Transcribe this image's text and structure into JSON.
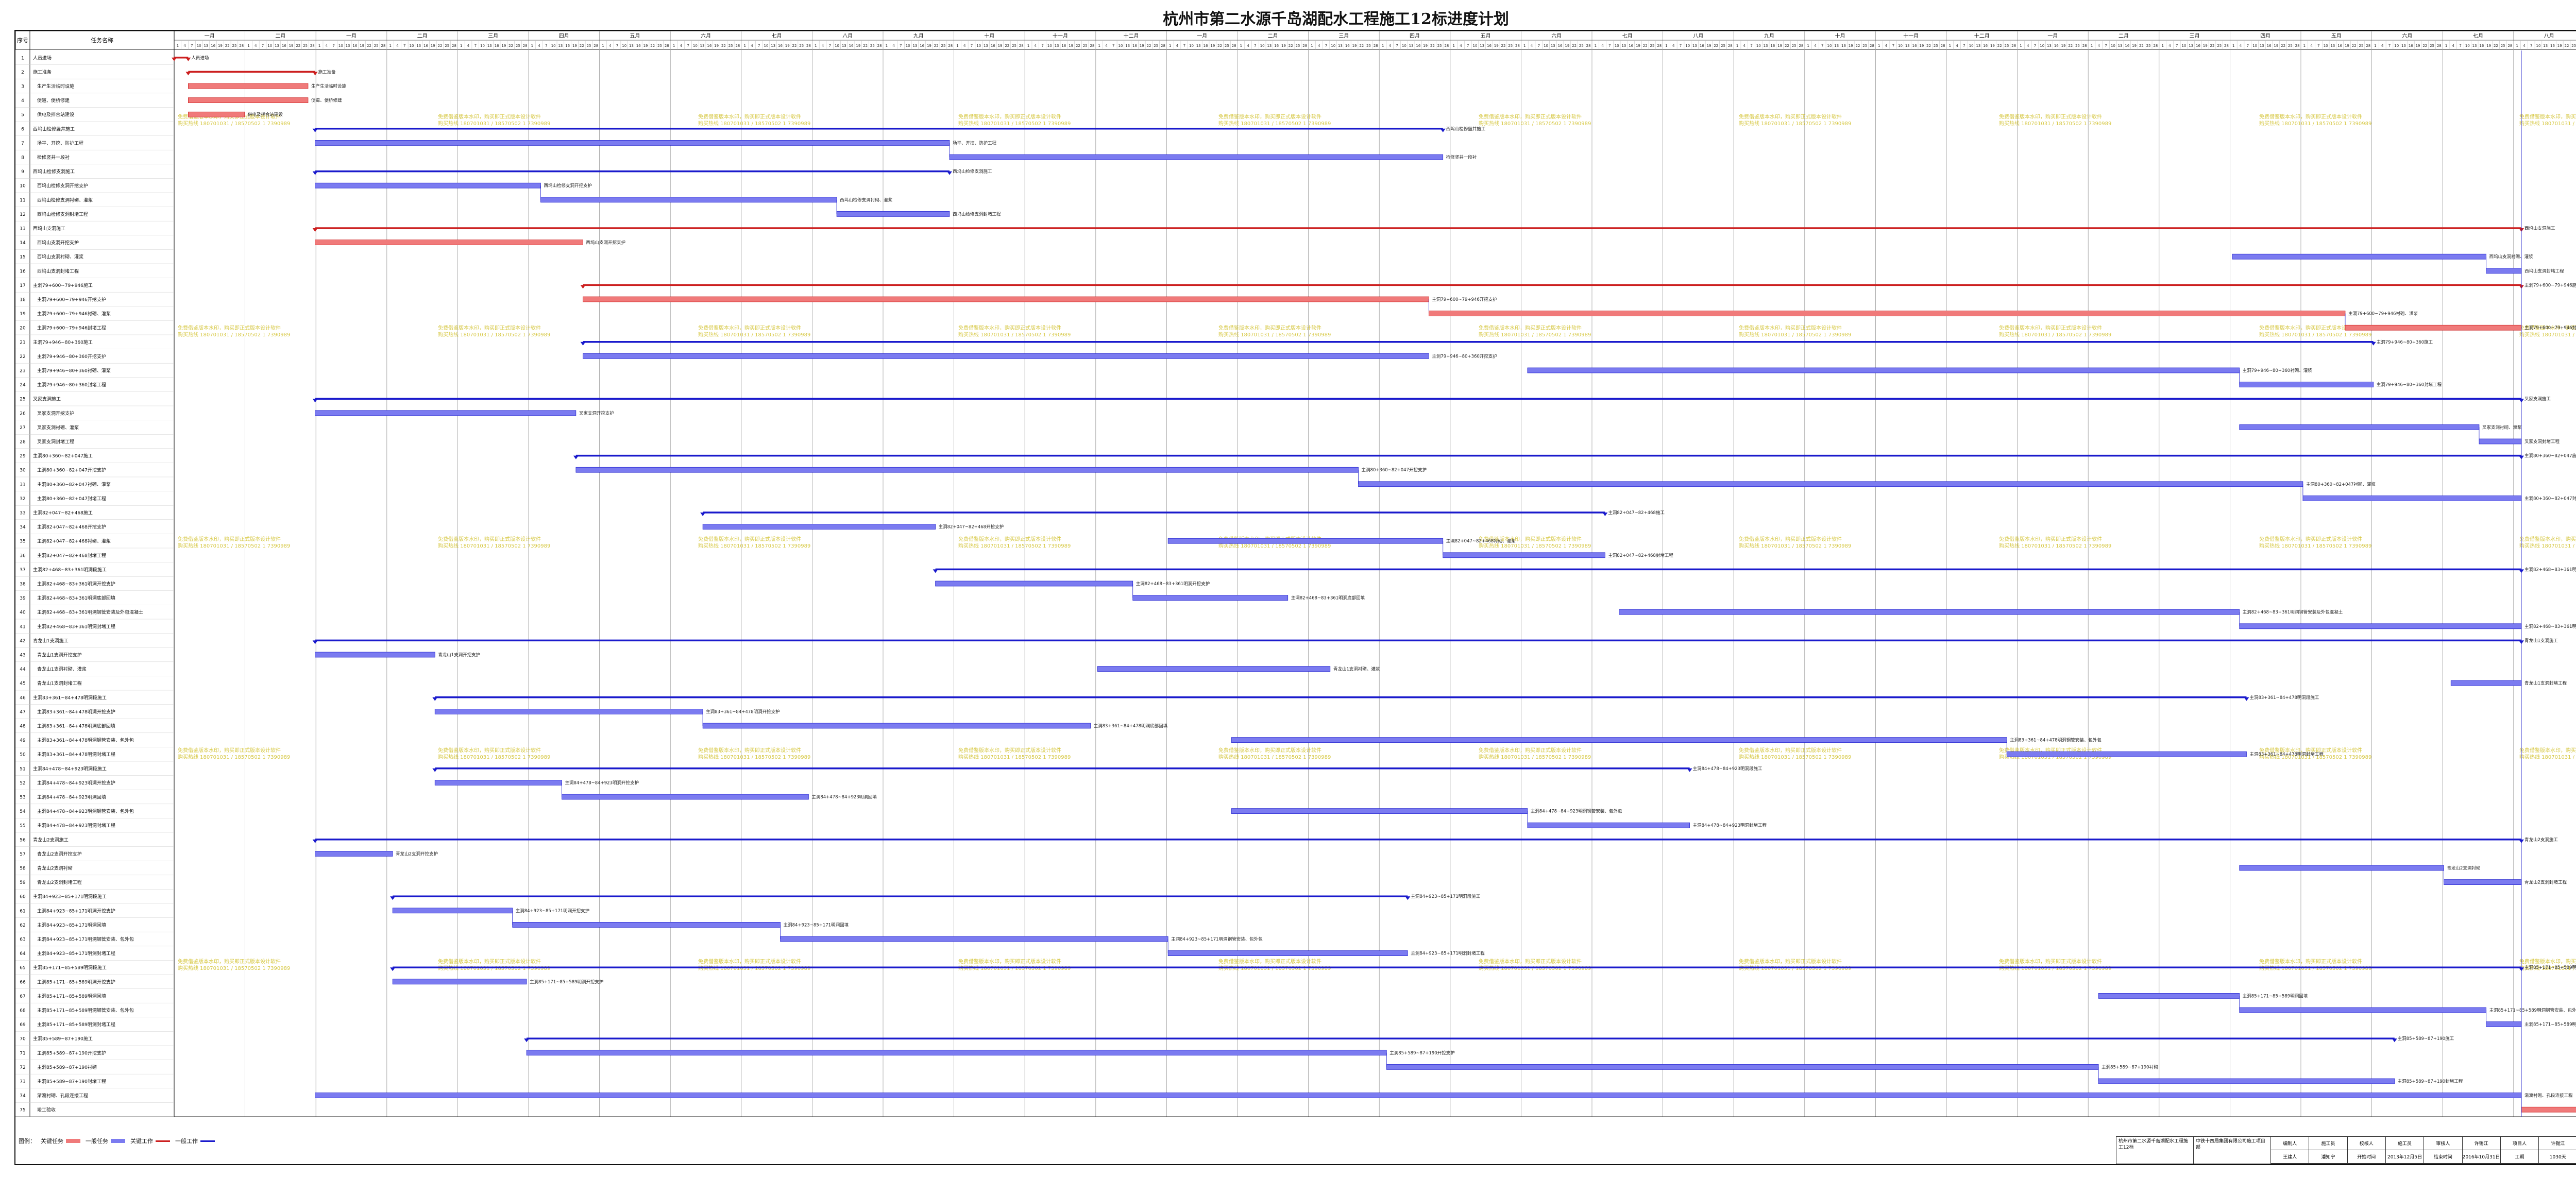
{
  "title": "杭州市第二水源千岛湖配水工程施工12标进度计划",
  "colors": {
    "red": "#f07a7a",
    "red_line": "#cc1f1f",
    "blue": "#7b7bf0",
    "blue_line": "#1a1acc",
    "arrow": "#1a1acc",
    "watermark": "#c8b400",
    "today": "#b03030"
  },
  "watermark": {
    "line1": "免费借鉴版本水印，购买即正式版本设计软件",
    "line2": "购买热线 180701031 / 18570502 1 7390989"
  },
  "table": {
    "col_num": "序号",
    "col_name": "任务名称"
  },
  "timeline": {
    "months": [
      "一月",
      "二月",
      "一月",
      "二月",
      "三月",
      "四月",
      "五月",
      "六月",
      "七月",
      "八月",
      "九月",
      "十月",
      "十一月",
      "十二月",
      "一月",
      "二月",
      "三月",
      "四月",
      "五月",
      "六月",
      "七月",
      "八月",
      "九月",
      "十月",
      "十一月",
      "十二月",
      "一月",
      "二月",
      "三月",
      "四月",
      "五月",
      "六月",
      "七月",
      "八月",
      "九月"
    ],
    "day_ticks": [
      "1",
      "4",
      "7",
      "10",
      "13",
      "16",
      "19",
      "22",
      "25",
      "28"
    ]
  },
  "chart_data": {
    "type": "gantt",
    "title": "杭州市第二水源千岛湖配水工程施工12标进度计划",
    "time_axis_unit": "month column",
    "x_range": [
      0,
      35.2
    ],
    "legend": [
      "关键任务",
      "一般任务",
      "关键工作",
      "一般工作"
    ],
    "tasks": [
      {
        "id": "1",
        "name": "人员进场",
        "start": 0.0,
        "end": 0.2,
        "kind": "red",
        "level": "summary"
      },
      {
        "id": "2",
        "name": "施工准备",
        "start": 0.2,
        "end": 2.0,
        "kind": "red",
        "level": "summary"
      },
      {
        "id": "3",
        "name": "生产生活临时设施",
        "start": 0.2,
        "end": 1.9,
        "kind": "red",
        "level": "task"
      },
      {
        "id": "4",
        "name": "便道、便桥修建",
        "start": 0.2,
        "end": 1.9,
        "kind": "red",
        "level": "task"
      },
      {
        "id": "5",
        "name": "供电及拌合站建设",
        "start": 0.2,
        "end": 1.0,
        "kind": "red",
        "level": "task"
      },
      {
        "id": "6",
        "name": "西坞山检修竖井施工",
        "start": 2.0,
        "end": 18.0,
        "kind": "blue",
        "level": "summary"
      },
      {
        "id": "7",
        "name": "场平、开挖、防护工程",
        "start": 2.0,
        "end": 11.0,
        "kind": "blue",
        "level": "task"
      },
      {
        "id": "8",
        "name": "检修竖井一段衬",
        "start": 11.0,
        "end": 18.0,
        "kind": "blue",
        "level": "task"
      },
      {
        "id": "9",
        "name": "西坞山检修支洞施工",
        "start": 2.0,
        "end": 11.0,
        "kind": "blue",
        "level": "summary"
      },
      {
        "id": "10",
        "name": "西坞山检修支洞开挖支护",
        "start": 2.0,
        "end": 5.2,
        "kind": "blue",
        "level": "task"
      },
      {
        "id": "11",
        "name": "西坞山检修支洞衬砌、灌浆",
        "start": 5.2,
        "end": 9.4,
        "kind": "blue",
        "level": "task"
      },
      {
        "id": "12",
        "name": "西坞山检修支洞封堵工程",
        "start": 9.4,
        "end": 11.0,
        "kind": "blue",
        "level": "task"
      },
      {
        "id": "13",
        "name": "西坞山支洞施工",
        "start": 2.0,
        "end": 33.3,
        "kind": "red",
        "level": "summary"
      },
      {
        "id": "14",
        "name": "西坞山支洞开挖支护",
        "start": 2.0,
        "end": 5.8,
        "kind": "red",
        "level": "task"
      },
      {
        "id": "15",
        "name": "西坞山支洞衬砌、灌浆",
        "start": 29.2,
        "end": 32.8,
        "kind": "blue",
        "level": "task"
      },
      {
        "id": "16",
        "name": "西坞山支洞封堵工程",
        "start": 32.8,
        "end": 33.3,
        "kind": "blue",
        "level": "task"
      },
      {
        "id": "17",
        "name": "主洞79+600~79+946施工",
        "start": 5.8,
        "end": 33.3,
        "kind": "red",
        "level": "summary"
      },
      {
        "id": "18",
        "name": "主洞79+600~79+946开挖支护",
        "start": 5.8,
        "end": 17.8,
        "kind": "red",
        "level": "task"
      },
      {
        "id": "19",
        "name": "主洞79+600~79+946衬砌、灌浆",
        "start": 17.8,
        "end": 30.8,
        "kind": "red",
        "level": "task"
      },
      {
        "id": "20",
        "name": "主洞79+600~79+946封堵工程",
        "start": 30.8,
        "end": 33.3,
        "kind": "red",
        "level": "task"
      },
      {
        "id": "21",
        "name": "主洞79+946~80+360施工",
        "start": 5.8,
        "end": 31.2,
        "kind": "blue",
        "level": "summary"
      },
      {
        "id": "22",
        "name": "主洞79+946~80+360开挖支护",
        "start": 5.8,
        "end": 17.8,
        "kind": "blue",
        "level": "task"
      },
      {
        "id": "23",
        "name": "主洞79+946~80+360衬砌、灌浆",
        "start": 19.2,
        "end": 29.3,
        "kind": "blue",
        "level": "task"
      },
      {
        "id": "24",
        "name": "主洞79+946~80+360封堵工程",
        "start": 29.3,
        "end": 31.2,
        "kind": "blue",
        "level": "task"
      },
      {
        "id": "25",
        "name": "叉家支洞施工",
        "start": 2.0,
        "end": 33.3,
        "kind": "blue",
        "level": "summary"
      },
      {
        "id": "26",
        "name": "叉家支洞开挖支护",
        "start": 2.0,
        "end": 5.7,
        "kind": "blue",
        "level": "task"
      },
      {
        "id": "27",
        "name": "叉家支洞衬砌、灌浆",
        "start": 29.3,
        "end": 32.7,
        "kind": "blue",
        "level": "task"
      },
      {
        "id": "28",
        "name": "叉家支洞封堵工程",
        "start": 32.7,
        "end": 33.3,
        "kind": "blue",
        "level": "task"
      },
      {
        "id": "29",
        "name": "主洞80+360~82+047施工",
        "start": 5.7,
        "end": 33.3,
        "kind": "blue",
        "level": "summary"
      },
      {
        "id": "30",
        "name": "主洞80+360~82+047开挖支护",
        "start": 5.7,
        "end": 16.8,
        "kind": "blue",
        "level": "task"
      },
      {
        "id": "31",
        "name": "主洞80+360~82+047衬砌、灌浆",
        "start": 16.8,
        "end": 30.2,
        "kind": "blue",
        "level": "task"
      },
      {
        "id": "32",
        "name": "主洞80+360~82+047封堵工程",
        "start": 30.2,
        "end": 33.3,
        "kind": "blue",
        "level": "task"
      },
      {
        "id": "33",
        "name": "主洞82+047~82+468施工",
        "start": 7.5,
        "end": 20.3,
        "kind": "blue",
        "level": "summary"
      },
      {
        "id": "34",
        "name": "主洞82+047~82+468开挖支护",
        "start": 7.5,
        "end": 10.8,
        "kind": "blue",
        "level": "task"
      },
      {
        "id": "35",
        "name": "主洞82+047~82+468衬砌、灌浆",
        "start": 14.1,
        "end": 18.0,
        "kind": "blue",
        "level": "task"
      },
      {
        "id": "36",
        "name": "主洞82+047~82+468封堵工程",
        "start": 18.0,
        "end": 20.3,
        "kind": "blue",
        "level": "task"
      },
      {
        "id": "37",
        "name": "主洞82+468~83+361明洞段施工",
        "start": 10.8,
        "end": 33.3,
        "kind": "blue",
        "level": "summary"
      },
      {
        "id": "38",
        "name": "主洞82+468~83+361明洞开挖支护",
        "start": 10.8,
        "end": 13.6,
        "kind": "blue",
        "level": "task"
      },
      {
        "id": "39",
        "name": "主洞82+468~83+361明洞底部回填",
        "start": 13.6,
        "end": 15.8,
        "kind": "blue",
        "level": "task"
      },
      {
        "id": "40",
        "name": "主洞82+468~83+361明洞钢管安装及外包混凝土",
        "start": 20.5,
        "end": 29.3,
        "kind": "blue",
        "level": "task"
      },
      {
        "id": "41",
        "name": "主洞82+468~83+361明洞封堵工程",
        "start": 29.3,
        "end": 33.3,
        "kind": "blue",
        "level": "task"
      },
      {
        "id": "42",
        "name": "青龙山1支洞施工",
        "start": 2.0,
        "end": 33.3,
        "kind": "blue",
        "level": "summary"
      },
      {
        "id": "43",
        "name": "青龙山1支洞开挖支护",
        "start": 2.0,
        "end": 3.7,
        "kind": "blue",
        "level": "task"
      },
      {
        "id": "44",
        "name": "青龙山1支洞衬砌、灌浆",
        "start": 13.1,
        "end": 16.4,
        "kind": "blue",
        "level": "task"
      },
      {
        "id": "45",
        "name": "青龙山1支洞封堵工程",
        "start": 32.3,
        "end": 33.3,
        "kind": "blue",
        "level": "task"
      },
      {
        "id": "46",
        "name": "主洞83+361~84+478明洞段施工",
        "start": 3.7,
        "end": 29.4,
        "kind": "blue",
        "level": "summary"
      },
      {
        "id": "47",
        "name": "主洞83+361~84+478明洞开挖支护",
        "start": 3.7,
        "end": 7.5,
        "kind": "blue",
        "level": "task"
      },
      {
        "id": "48",
        "name": "主洞83+361~84+478明洞底部回填",
        "start": 7.5,
        "end": 13.0,
        "kind": "blue",
        "level": "task"
      },
      {
        "id": "49",
        "name": "主洞83+361~84+478明洞钢管安装、包外包",
        "start": 15.0,
        "end": 26.0,
        "kind": "blue",
        "level": "task"
      },
      {
        "id": "50",
        "name": "主洞83+361~84+478明洞封堵工程",
        "start": 26.0,
        "end": 29.4,
        "kind": "blue",
        "level": "task"
      },
      {
        "id": "51",
        "name": "主洞84+478~84+923明洞段施工",
        "start": 3.7,
        "end": 21.5,
        "kind": "blue",
        "level": "summary"
      },
      {
        "id": "52",
        "name": "主洞84+478~84+923明洞开挖支护",
        "start": 3.7,
        "end": 5.5,
        "kind": "blue",
        "level": "task"
      },
      {
        "id": "53",
        "name": "主洞84+478~84+923明洞回填",
        "start": 5.5,
        "end": 9.0,
        "kind": "blue",
        "level": "task"
      },
      {
        "id": "54",
        "name": "主洞84+478~84+923明洞钢管安装、包外包",
        "start": 15.0,
        "end": 19.2,
        "kind": "blue",
        "level": "task"
      },
      {
        "id": "55",
        "name": "主洞84+478~84+923明洞封堵工程",
        "start": 19.2,
        "end": 21.5,
        "kind": "blue",
        "level": "task"
      },
      {
        "id": "56",
        "name": "青龙山2支洞施工",
        "start": 2.0,
        "end": 33.3,
        "kind": "blue",
        "level": "summary"
      },
      {
        "id": "57",
        "name": "青龙山2支洞开挖支护",
        "start": 2.0,
        "end": 3.1,
        "kind": "blue",
        "level": "task"
      },
      {
        "id": "58",
        "name": "青龙山2支洞衬砌",
        "start": 29.3,
        "end": 32.2,
        "kind": "blue",
        "level": "task"
      },
      {
        "id": "59",
        "name": "青龙山2支洞封堵工程",
        "start": 32.2,
        "end": 33.3,
        "kind": "blue",
        "level": "task"
      },
      {
        "id": "60",
        "name": "主洞84+923~85+171明洞段施工",
        "start": 3.1,
        "end": 17.5,
        "kind": "blue",
        "level": "summary"
      },
      {
        "id": "61",
        "name": "主洞84+923~85+171明洞开挖支护",
        "start": 3.1,
        "end": 4.8,
        "kind": "blue",
        "level": "task"
      },
      {
        "id": "62",
        "name": "主洞84+923~85+171明洞回填",
        "start": 4.8,
        "end": 8.6,
        "kind": "blue",
        "level": "task"
      },
      {
        "id": "63",
        "name": "主洞84+923~85+171明洞钢管安装、包外包",
        "start": 8.6,
        "end": 14.1,
        "kind": "blue",
        "level": "task"
      },
      {
        "id": "64",
        "name": "主洞84+923~85+171明洞封堵工程",
        "start": 14.1,
        "end": 17.5,
        "kind": "blue",
        "level": "task"
      },
      {
        "id": "65",
        "name": "主洞85+171~85+589明洞段施工",
        "start": 3.1,
        "end": 33.3,
        "kind": "blue",
        "level": "summary"
      },
      {
        "id": "66",
        "name": "主洞85+171~85+589明洞开挖支护",
        "start": 3.1,
        "end": 5.0,
        "kind": "blue",
        "level": "task"
      },
      {
        "id": "67",
        "name": "主洞85+171~85+589明洞回填",
        "start": 27.3,
        "end": 29.3,
        "kind": "blue",
        "level": "task"
      },
      {
        "id": "68",
        "name": "主洞85+171~85+589明洞钢管安装、包外包",
        "start": 29.3,
        "end": 32.8,
        "kind": "blue",
        "level": "task"
      },
      {
        "id": "69",
        "name": "主洞85+171~85+589明洞封堵工程",
        "start": 32.8,
        "end": 33.3,
        "kind": "blue",
        "level": "task"
      },
      {
        "id": "70",
        "name": "主洞85+589~87+190施工",
        "start": 5.0,
        "end": 31.5,
        "kind": "blue",
        "level": "summary"
      },
      {
        "id": "71",
        "name": "主洞85+589~87+190开挖支护",
        "start": 5.0,
        "end": 17.2,
        "kind": "blue",
        "level": "task"
      },
      {
        "id": "72",
        "name": "主洞85+589~87+190衬砌",
        "start": 17.2,
        "end": 27.3,
        "kind": "blue",
        "level": "task"
      },
      {
        "id": "73",
        "name": "主洞85+589~87+190封堵工程",
        "start": 27.3,
        "end": 31.5,
        "kind": "blue",
        "level": "task"
      },
      {
        "id": "74",
        "name": "渐渡衬砌、孔段连接工程",
        "start": 2.0,
        "end": 33.3,
        "kind": "blue",
        "level": "task"
      },
      {
        "id": "75",
        "name": "竣工验收",
        "start": 33.3,
        "end": 35.2,
        "kind": "red",
        "level": "task"
      }
    ]
  },
  "legend": {
    "label": "图例：",
    "items": [
      "关键任务",
      "一般任务",
      "关键工作",
      "一般工作"
    ]
  },
  "signoff": {
    "project": "杭州市第二水源千岛湖配水工程施工12标",
    "unit": "中铁十四局集团有限公司施工项目部",
    "row1": [
      "编制人",
      "施工员",
      "校核人",
      "施工员",
      "审核人",
      "许锡江",
      "项目人",
      "许锡江",
      "",
      ""
    ],
    "row2": [
      "王建人",
      "潘知宁",
      "开始时间",
      "2013年12月5日",
      "结束时间",
      "2016年10月31日",
      "工期",
      "1030天",
      "",
      "2013-12-05"
    ]
  }
}
